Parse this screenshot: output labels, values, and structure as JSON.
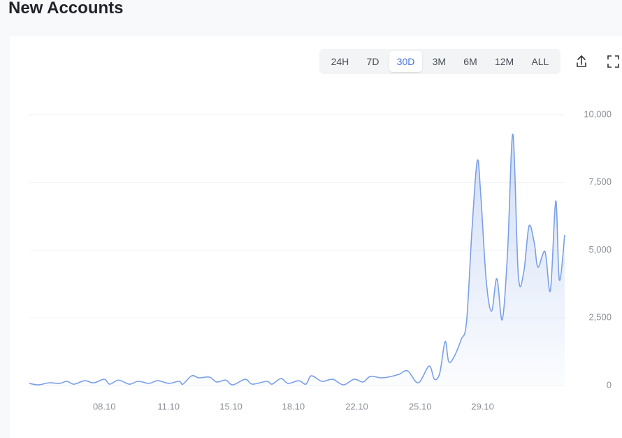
{
  "header": {
    "title": "New Accounts"
  },
  "controls": {
    "ranges": [
      "24H",
      "7D",
      "30D",
      "3M",
      "6M",
      "12M",
      "ALL"
    ],
    "active": "30D"
  },
  "chart_data": {
    "type": "area",
    "color": "#7aa0e6",
    "x": [
      0,
      0.5,
      1.1,
      1.7,
      2.1,
      2.5,
      3.1,
      3.6,
      4.2,
      4.5,
      5.0,
      5.6,
      6.1,
      6.7,
      7.2,
      7.8,
      8.4,
      8.6,
      9.1,
      9.5,
      10.1,
      10.5,
      11.0,
      11.4,
      12.1,
      12.5,
      13.3,
      13.6,
      14.1,
      14.5,
      15.1,
      15.5,
      15.8,
      16.4,
      17.0,
      17.6,
      18.2,
      18.7,
      19.1,
      19.7,
      20.1,
      20.7,
      21.2,
      21.8,
      22.4,
      22.7,
      23.0,
      23.3,
      23.5,
      23.8,
      24.2,
      24.5,
      24.8,
      25.1,
      25.3,
      25.6,
      25.9,
      26.2,
      26.5,
      26.8,
      27.1,
      27.4,
      27.7,
      28.0,
      28.3,
      28.5,
      28.9,
      29.2,
      29.5,
      29.7,
      30.0
    ],
    "series": [
      {
        "color": "#7aa0e6",
        "values": [
          80,
          25,
          100,
          80,
          155,
          50,
          180,
          100,
          230,
          50,
          200,
          50,
          155,
          80,
          180,
          80,
          155,
          50,
          360,
          285,
          310,
          130,
          200,
          25,
          230,
          50,
          155,
          50,
          260,
          80,
          180,
          50,
          360,
          155,
          230,
          25,
          230,
          130,
          335,
          285,
          310,
          410,
          540,
          100,
          720,
          230,
          465,
          1630,
          880,
          1060,
          1700,
          2350,
          5710,
          8300,
          7000,
          3900,
          2740,
          3950,
          2430,
          4940,
          9280,
          4080,
          4160,
          5890,
          5250,
          4370,
          4940,
          3510,
          6820,
          3900,
          5560
        ]
      }
    ],
    "xlim": [
      0,
      30
    ],
    "xticks": [
      {
        "value": 4.2,
        "label": "08.10"
      },
      {
        "value": 7.8,
        "label": "11.10"
      },
      {
        "value": 11.3,
        "label": "15.10"
      },
      {
        "value": 14.8,
        "label": "18.10"
      },
      {
        "value": 18.35,
        "label": "22.10"
      },
      {
        "value": 21.9,
        "label": "25.10"
      },
      {
        "value": 25.4,
        "label": "29.10"
      }
    ],
    "ylim": [
      0,
      10000
    ],
    "yticks": [
      0,
      {
        "value": 2500,
        "label": "2,500"
      },
      {
        "value": 5000,
        "label": "5,000"
      },
      {
        "value": 7500,
        "label": "7,500"
      },
      {
        "value": 10000,
        "label": "10,000"
      }
    ],
    "grid": true
  }
}
